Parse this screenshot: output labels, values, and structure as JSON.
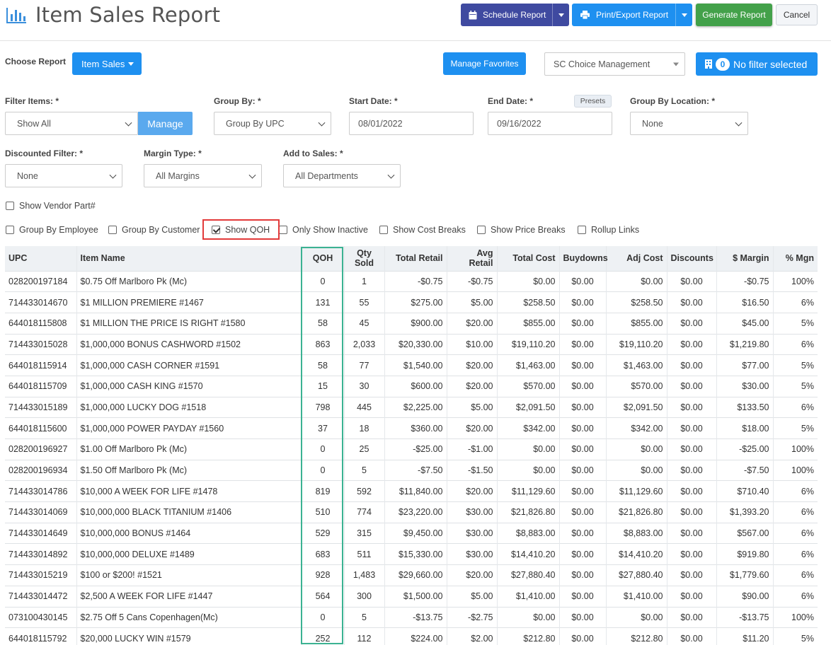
{
  "header": {
    "title": "Item Sales Report",
    "schedule_label": "Schedule Report",
    "print_label": "Print/Export Report",
    "generate_label": "Generate Report",
    "cancel_label": "Cancel"
  },
  "toolbar": {
    "choose_report_label": "Choose Report",
    "report_value": "Item Sales",
    "manage_favorites_label": "Manage Favorites",
    "company_value": "SC Choice Management",
    "filter_count": "0",
    "filter_label": "No filter selected"
  },
  "filters": {
    "filter_items_label": "Filter Items: *",
    "filter_items_value": "Show All",
    "manage_label": "Manage",
    "group_by_label": "Group By: *",
    "group_by_value": "Group By UPC",
    "start_date_label": "Start Date: *",
    "start_date_value": "08/01/2022",
    "end_date_label": "End Date: *",
    "end_date_value": "09/16/2022",
    "presets_label": "Presets",
    "group_by_location_label": "Group By Location: *",
    "group_by_location_value": "None",
    "discounted_label": "Discounted Filter: *",
    "discounted_value": "None",
    "margin_type_label": "Margin Type: *",
    "margin_type_value": "All Margins",
    "add_to_sales_label": "Add to Sales: *",
    "add_to_sales_value": "All Departments"
  },
  "checkboxes": {
    "show_vendor_part": {
      "label": "Show Vendor Part#",
      "checked": false
    },
    "group_by_employee": {
      "label": "Group By Employee",
      "checked": false
    },
    "group_by_customer": {
      "label": "Group By Customer",
      "checked": false
    },
    "show_qoh": {
      "label": "Show QOH",
      "checked": true
    },
    "only_show_inactive": {
      "label": "Only Show Inactive",
      "checked": false
    },
    "show_cost_breaks": {
      "label": "Show Cost Breaks",
      "checked": false
    },
    "show_price_breaks": {
      "label": "Show Price Breaks",
      "checked": false
    },
    "rollup_links": {
      "label": "Rollup Links",
      "checked": false
    }
  },
  "table": {
    "columns": [
      "UPC",
      "Item Name",
      "QOH",
      "Qty Sold",
      "Total Retail",
      "Avg Retail",
      "Total Cost",
      "Buydowns",
      "Adj Cost",
      "Discounts",
      "$ Margin",
      "% Mgn"
    ],
    "rows": [
      [
        "028200197184",
        "$0.75 Off Marlboro Pk (Mc)",
        "0",
        "1",
        "-$0.75",
        "-$0.75",
        "$0.00",
        "$0.00",
        "$0.00",
        "$0.00",
        "-$0.75",
        "100%"
      ],
      [
        "714433014670",
        "$1 MILLION PREMIERE #1467",
        "131",
        "55",
        "$275.00",
        "$5.00",
        "$258.50",
        "$0.00",
        "$258.50",
        "$0.00",
        "$16.50",
        "6%"
      ],
      [
        "644018115808",
        "$1 MILLION THE PRICE IS RIGHT #1580",
        "58",
        "45",
        "$900.00",
        "$20.00",
        "$855.00",
        "$0.00",
        "$855.00",
        "$0.00",
        "$45.00",
        "5%"
      ],
      [
        "714433015028",
        "$1,000,000 BONUS CASHWORD #1502",
        "863",
        "2,033",
        "$20,330.00",
        "$10.00",
        "$19,110.20",
        "$0.00",
        "$19,110.20",
        "$0.00",
        "$1,219.80",
        "6%"
      ],
      [
        "644018115914",
        "$1,000,000 CASH CORNER #1591",
        "58",
        "77",
        "$1,540.00",
        "$20.00",
        "$1,463.00",
        "$0.00",
        "$1,463.00",
        "$0.00",
        "$77.00",
        "5%"
      ],
      [
        "644018115709",
        "$1,000,000 CASH KING #1570",
        "15",
        "30",
        "$600.00",
        "$20.00",
        "$570.00",
        "$0.00",
        "$570.00",
        "$0.00",
        "$30.00",
        "5%"
      ],
      [
        "714433015189",
        "$1,000,000 LUCKY DOG #1518",
        "798",
        "445",
        "$2,225.00",
        "$5.00",
        "$2,091.50",
        "$0.00",
        "$2,091.50",
        "$0.00",
        "$133.50",
        "6%"
      ],
      [
        "644018115600",
        "$1,000,000 POWER PAYDAY #1560",
        "37",
        "18",
        "$360.00",
        "$20.00",
        "$342.00",
        "$0.00",
        "$342.00",
        "$0.00",
        "$18.00",
        "5%"
      ],
      [
        "028200196927",
        "$1.00 Off Marlboro Pk (Mc)",
        "0",
        "25",
        "-$25.00",
        "-$1.00",
        "$0.00",
        "$0.00",
        "$0.00",
        "$0.00",
        "-$25.00",
        "100%"
      ],
      [
        "028200196934",
        "$1.50 Off Marlboro Pk (Mc)",
        "0",
        "5",
        "-$7.50",
        "-$1.50",
        "$0.00",
        "$0.00",
        "$0.00",
        "$0.00",
        "-$7.50",
        "100%"
      ],
      [
        "714433014786",
        "$10,000 A WEEK FOR LIFE #1478",
        "819",
        "592",
        "$11,840.00",
        "$20.00",
        "$11,129.60",
        "$0.00",
        "$11,129.60",
        "$0.00",
        "$710.40",
        "6%"
      ],
      [
        "714433014069",
        "$10,000,000 BLACK TITANIUM #1406",
        "510",
        "774",
        "$23,220.00",
        "$30.00",
        "$21,826.80",
        "$0.00",
        "$21,826.80",
        "$0.00",
        "$1,393.20",
        "6%"
      ],
      [
        "714433014649",
        "$10,000,000 BONUS #1464",
        "529",
        "315",
        "$9,450.00",
        "$30.00",
        "$8,883.00",
        "$0.00",
        "$8,883.00",
        "$0.00",
        "$567.00",
        "6%"
      ],
      [
        "714433014892",
        "$10,000,000 DELUXE #1489",
        "683",
        "511",
        "$15,330.00",
        "$30.00",
        "$14,410.20",
        "$0.00",
        "$14,410.20",
        "$0.00",
        "$919.80",
        "6%"
      ],
      [
        "714433015219",
        "$100 or $200! #1521",
        "928",
        "1,483",
        "$29,660.00",
        "$20.00",
        "$27,880.40",
        "$0.00",
        "$27,880.40",
        "$0.00",
        "$1,779.60",
        "6%"
      ],
      [
        "714433014472",
        "$2,500 A WEEK FOR LIFE #1447",
        "564",
        "300",
        "$1,500.00",
        "$5.00",
        "$1,410.00",
        "$0.00",
        "$1,410.00",
        "$0.00",
        "$90.00",
        "6%"
      ],
      [
        "073100430145",
        "$2.75 Off 5 Cans Copenhagen(Mc)",
        "0",
        "5",
        "-$13.75",
        "-$2.75",
        "$0.00",
        "$0.00",
        "$0.00",
        "$0.00",
        "-$13.75",
        "100%"
      ],
      [
        "644018115792",
        "$20,000 LUCKY WIN #1579",
        "252",
        "112",
        "$224.00",
        "$2.00",
        "$212.80",
        "$0.00",
        "$212.80",
        "$0.00",
        "$11.20",
        "5%"
      ]
    ]
  },
  "colors": {
    "navy": "#3f4aa0",
    "blue": "#1e90f0",
    "green": "#43a14a",
    "link": "#2a73b9",
    "qoh_highlight": "#3bb292",
    "checkbox_highlight": "#e23a3a"
  },
  "icons": {
    "title": "bar-chart-icon",
    "schedule": "calendar-icon",
    "print": "printer-icon",
    "filter": "building-icon"
  }
}
